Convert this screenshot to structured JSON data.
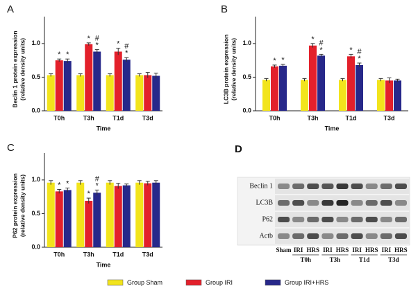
{
  "chart_data": [
    {
      "type": "bar",
      "panel": "A",
      "ylabel": [
        "Beclin 1 protein expression",
        "(relative density units)"
      ],
      "xlabel": "Time",
      "categories": [
        "T0h",
        "T3h",
        "T1d",
        "T3d"
      ],
      "ylim": [
        0,
        1.4
      ],
      "yticks": [
        {
          "value": 0,
          "label": "0.0"
        },
        0.5,
        {
          "value": 1,
          "label": "1.0"
        }
      ],
      "series": [
        {
          "name": "Group Sham",
          "color": "#f2e41c",
          "values": [
            0.53,
            0.53,
            0.53,
            0.53
          ],
          "errors": [
            0.02,
            0.02,
            0.02,
            0.02
          ],
          "annotations": [
            null,
            null,
            null,
            null
          ]
        },
        {
          "name": "Group IRI",
          "color": "#e3202b",
          "values": [
            0.75,
            0.99,
            0.88,
            0.53
          ],
          "errors": [
            0.02,
            0.02,
            0.05,
            0.04
          ],
          "annotations": [
            [
              "*"
            ],
            [
              "*"
            ],
            [
              "*"
            ],
            null
          ]
        },
        {
          "name": "Group IRI+HRS",
          "color": "#27288a",
          "values": [
            0.74,
            0.88,
            0.76,
            0.52
          ],
          "errors": [
            0.03,
            0.03,
            0.03,
            0.04
          ],
          "annotations": [
            [
              "*"
            ],
            [
              "#",
              "*"
            ],
            [
              "#",
              "*"
            ],
            null
          ]
        }
      ]
    },
    {
      "type": "bar",
      "panel": "B",
      "ylabel": [
        "LC3B protein expression",
        "(relative density units)"
      ],
      "xlabel": "Time",
      "categories": [
        "T0h",
        "T3h",
        "T1d",
        "T3d"
      ],
      "ylim": [
        0,
        1.4
      ],
      "yticks": [
        {
          "value": 0,
          "label": "0.0"
        },
        0.5,
        {
          "value": 1,
          "label": "1.0"
        }
      ],
      "series": [
        {
          "name": "Group Sham",
          "color": "#f2e41c",
          "values": [
            0.46,
            0.46,
            0.46,
            0.46
          ],
          "errors": [
            0.02,
            0.02,
            0.02,
            0.02
          ],
          "annotations": [
            null,
            null,
            null,
            null
          ]
        },
        {
          "name": "Group IRI",
          "color": "#e3202b",
          "values": [
            0.66,
            0.97,
            0.81,
            0.45
          ],
          "errors": [
            0.02,
            0.03,
            0.03,
            0.04
          ],
          "annotations": [
            [
              "*"
            ],
            [
              "*"
            ],
            [
              "*"
            ],
            null
          ]
        },
        {
          "name": "Group IRI+HRS",
          "color": "#27288a",
          "values": [
            0.67,
            0.82,
            0.68,
            0.45
          ],
          "errors": [
            0.02,
            0.02,
            0.03,
            0.02
          ],
          "annotations": [
            [
              "*"
            ],
            [
              "#",
              "*"
            ],
            [
              "#",
              "*"
            ],
            null
          ]
        }
      ]
    },
    {
      "type": "bar",
      "panel": "C",
      "ylabel": [
        "P62 protein expression",
        "(relative density units)"
      ],
      "xlabel": "Time",
      "categories": [
        "T0h",
        "T3h",
        "T1d",
        "T3d"
      ],
      "ylim": [
        0,
        1.4
      ],
      "yticks": [
        {
          "value": 0,
          "label": "0.0"
        },
        0.5,
        {
          "value": 1,
          "label": "1.0"
        }
      ],
      "series": [
        {
          "name": "Group Sham",
          "color": "#f2e41c",
          "values": [
            0.96,
            0.96,
            0.96,
            0.96
          ],
          "errors": [
            0.03,
            0.03,
            0.03,
            0.03
          ],
          "annotations": [
            null,
            null,
            null,
            null
          ]
        },
        {
          "name": "Group IRI",
          "color": "#e3202b",
          "values": [
            0.83,
            0.69,
            0.91,
            0.95
          ],
          "errors": [
            0.03,
            0.04,
            0.04,
            0.03
          ],
          "annotations": [
            [
              "*"
            ],
            [
              "*"
            ],
            null,
            null
          ]
        },
        {
          "name": "Group IRI+HRS",
          "color": "#27288a",
          "values": [
            0.85,
            0.81,
            0.92,
            0.96
          ],
          "errors": [
            0.03,
            0.04,
            0.02,
            0.03
          ],
          "annotations": [
            [
              "*"
            ],
            [
              "#",
              "*"
            ],
            null,
            null
          ]
        }
      ]
    }
  ],
  "blot": {
    "panel": "D",
    "rows": [
      "Beclin 1",
      "LC3B",
      "P62",
      "Actb"
    ],
    "lanes": [
      "Sham",
      "IRI",
      "HRS",
      "IRI",
      "HRS",
      "IRI",
      "HRS",
      "IRI",
      "HRS"
    ],
    "groups": [
      "T0h",
      "T3h",
      "T1d",
      "T3d"
    ]
  }
}
